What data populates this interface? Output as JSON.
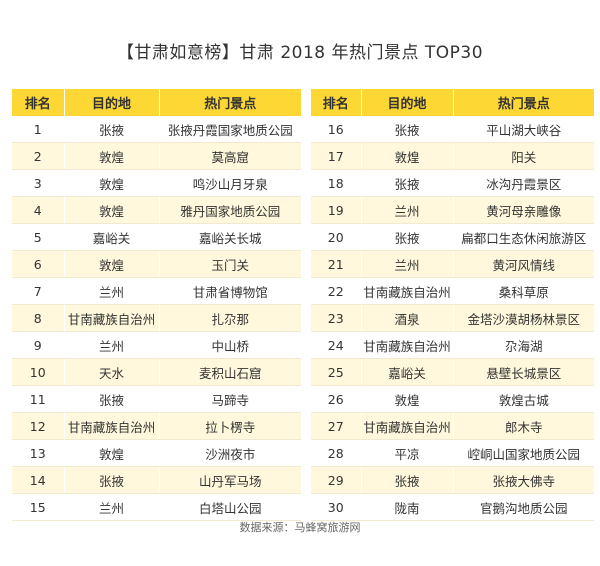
{
  "title": "【甘肃如意榜】甘肃 2018 年热门景点 TOP30",
  "headers": {
    "rank": "排名",
    "destination": "目的地",
    "attraction": "热门景点"
  },
  "left_rows": [
    {
      "rank": "1",
      "destination": "张掖",
      "attraction": "张掖丹霞国家地质公园"
    },
    {
      "rank": "2",
      "destination": "敦煌",
      "attraction": "莫高窟"
    },
    {
      "rank": "3",
      "destination": "敦煌",
      "attraction": "鸣沙山月牙泉"
    },
    {
      "rank": "4",
      "destination": "敦煌",
      "attraction": "雅丹国家地质公园"
    },
    {
      "rank": "5",
      "destination": "嘉峪关",
      "attraction": "嘉峪关长城"
    },
    {
      "rank": "6",
      "destination": "敦煌",
      "attraction": "玉门关"
    },
    {
      "rank": "7",
      "destination": "兰州",
      "attraction": "甘肃省博物馆"
    },
    {
      "rank": "8",
      "destination": "甘南藏族自治州",
      "attraction": "扎尕那"
    },
    {
      "rank": "9",
      "destination": "兰州",
      "attraction": "中山桥"
    },
    {
      "rank": "10",
      "destination": "天水",
      "attraction": "麦积山石窟"
    },
    {
      "rank": "11",
      "destination": "张掖",
      "attraction": "马蹄寺"
    },
    {
      "rank": "12",
      "destination": "甘南藏族自治州",
      "attraction": "拉卜楞寺"
    },
    {
      "rank": "13",
      "destination": "敦煌",
      "attraction": "沙洲夜市"
    },
    {
      "rank": "14",
      "destination": "张掖",
      "attraction": "山丹军马场"
    },
    {
      "rank": "15",
      "destination": "兰州",
      "attraction": "白塔山公园"
    }
  ],
  "right_rows": [
    {
      "rank": "16",
      "destination": "张掖",
      "attraction": "平山湖大峡谷"
    },
    {
      "rank": "17",
      "destination": "敦煌",
      "attraction": "阳关"
    },
    {
      "rank": "18",
      "destination": "张掖",
      "attraction": "冰沟丹霞景区"
    },
    {
      "rank": "19",
      "destination": "兰州",
      "attraction": "黄河母亲雕像"
    },
    {
      "rank": "20",
      "destination": "张掖",
      "attraction": "扁都口生态休闲旅游区"
    },
    {
      "rank": "21",
      "destination": "兰州",
      "attraction": "黄河风情线"
    },
    {
      "rank": "22",
      "destination": "甘南藏族自治州",
      "attraction": "桑科草原"
    },
    {
      "rank": "23",
      "destination": "酒泉",
      "attraction": "金塔沙漠胡杨林景区"
    },
    {
      "rank": "24",
      "destination": "甘南藏族自治州",
      "attraction": "尕海湖"
    },
    {
      "rank": "25",
      "destination": "嘉峪关",
      "attraction": "悬壁长城景区"
    },
    {
      "rank": "26",
      "destination": "敦煌",
      "attraction": "敦煌古城"
    },
    {
      "rank": "27",
      "destination": "甘南藏族自治州",
      "attraction": "郎木寺"
    },
    {
      "rank": "28",
      "destination": "平凉",
      "attraction": "崆峒山国家地质公园"
    },
    {
      "rank": "29",
      "destination": "张掖",
      "attraction": "张掖大佛寺"
    },
    {
      "rank": "30",
      "destination": "陇南",
      "attraction": "官鹅沟地质公园"
    }
  ],
  "source": "数据来源：马蜂窝旅游网",
  "colors": {
    "header": "#fdd835",
    "stripe": "#fff8dc"
  }
}
